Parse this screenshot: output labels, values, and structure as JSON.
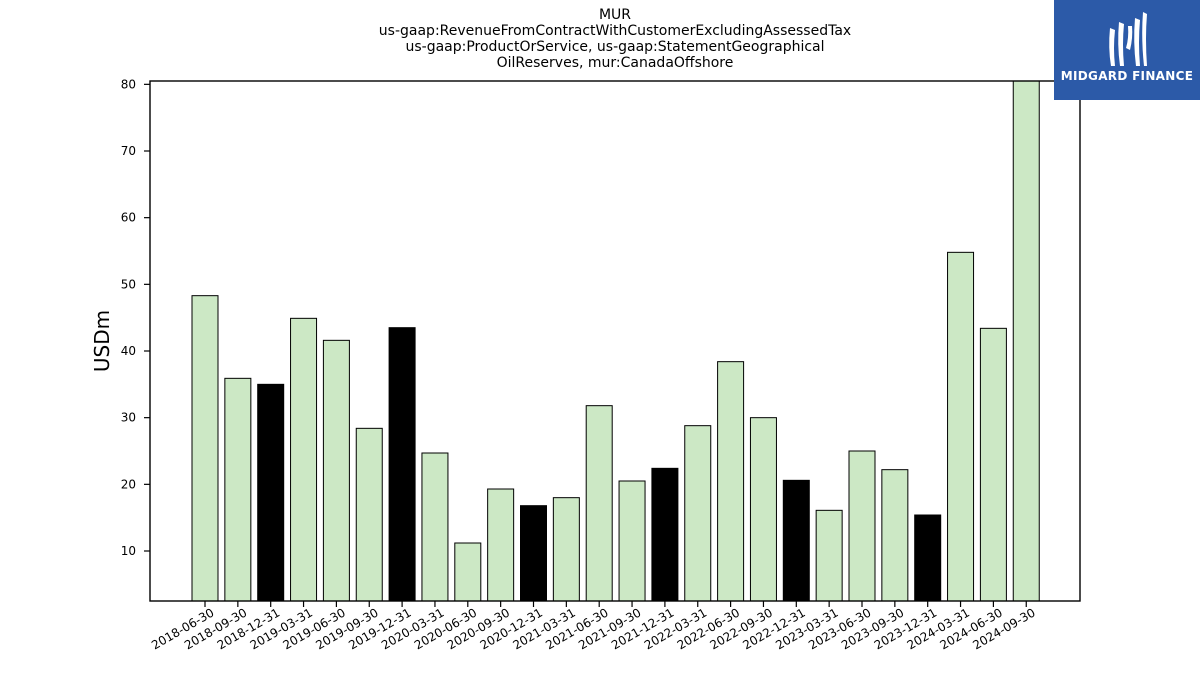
{
  "chart_data": {
    "type": "bar",
    "title_lines": [
      "MUR",
      "us-gaap:RevenueFromContractWithCustomerExcludingAssessedTax",
      "us-gaap:ProductOrService, us-gaap:StatementGeographical",
      "OilReserves, mur:CanadaOffshore"
    ],
    "ylabel": "USDm",
    "xlabel": "",
    "ylim": [
      2.5,
      80.5
    ],
    "yticks": [
      10,
      20,
      30,
      40,
      50,
      60,
      70,
      80
    ],
    "categories": [
      "2018-06-30",
      "2018-09-30",
      "2018-12-31",
      "2019-03-31",
      "2019-06-30",
      "2019-09-30",
      "2019-12-31",
      "2020-03-31",
      "2020-06-30",
      "2020-09-30",
      "2020-12-31",
      "2021-03-31",
      "2021-06-30",
      "2021-09-30",
      "2021-12-31",
      "2022-03-31",
      "2022-06-30",
      "2022-09-30",
      "2022-12-31",
      "2023-03-31",
      "2023-06-30",
      "2023-09-30",
      "2023-12-31",
      "2024-03-31",
      "2024-06-30",
      "2024-09-30"
    ],
    "values": [
      48.3,
      35.9,
      35.0,
      44.9,
      41.6,
      28.4,
      43.5,
      24.7,
      11.2,
      19.3,
      16.8,
      18.0,
      31.8,
      20.5,
      22.4,
      28.8,
      38.4,
      30.0,
      20.6,
      16.1,
      25.0,
      22.2,
      15.4,
      54.8,
      43.4,
      80.5
    ],
    "annual": [
      false,
      false,
      true,
      false,
      false,
      false,
      true,
      false,
      false,
      false,
      true,
      false,
      false,
      false,
      true,
      false,
      false,
      false,
      true,
      false,
      false,
      false,
      true,
      false,
      false,
      false
    ],
    "colors": {
      "quarterly": "#cce8c5",
      "annual": "#000000",
      "edge": "#000000"
    },
    "grid": false,
    "legend": "none"
  },
  "logo": {
    "text": "MIDGARD FINANCE",
    "background": "#2c5aa8"
  }
}
